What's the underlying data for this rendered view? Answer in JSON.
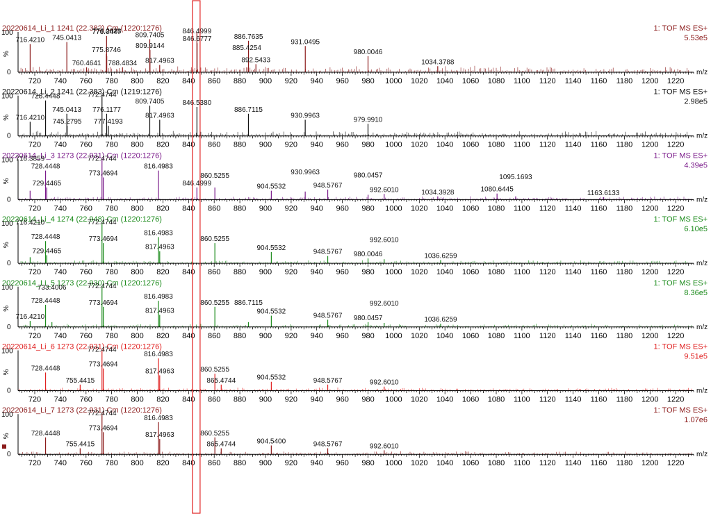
{
  "chart_data": {
    "type": "line",
    "x_axis": {
      "label": "m/z",
      "range": [
        707,
        1234
      ],
      "tick_labels": [
        "720",
        "740",
        "760",
        "780",
        "800",
        "820",
        "840",
        "860",
        "880",
        "900",
        "920",
        "940",
        "960",
        "980",
        "1000",
        "1020",
        "1040",
        "1060",
        "1080",
        "1100",
        "1120",
        "1140",
        "1160",
        "1180",
        "1200",
        "1220"
      ]
    },
    "y_axis": {
      "label": "%",
      "range": [
        0,
        100
      ],
      "tick_labels": [
        "0",
        "100"
      ]
    },
    "highlight": {
      "x_range": [
        843,
        849
      ],
      "color": "#e02020"
    },
    "series": [
      {
        "name": "20220614_Li_1 1241 (22.382) Cm (1220:1276)",
        "mode": "1: TOF MS ES+",
        "intensity": "5.53e5",
        "color": "#8b1a1a",
        "peaks": [
          {
            "mz": 716.421,
            "i": 70,
            "label": "716.4210"
          },
          {
            "mz": 745.0413,
            "i": 75,
            "label": "745.0413"
          },
          {
            "mz": 760.4641,
            "i": 12,
            "label": "760.4641"
          },
          {
            "mz": 775.8746,
            "i": 45,
            "label": "775.8746"
          },
          {
            "mz": 776.0447,
            "i": 90,
            "label": "776.0447"
          },
          {
            "mz": 776.2028,
            "i": 40,
            "label": "776.2028"
          },
          {
            "mz": 788.4834,
            "i": 12,
            "label": "788.4834"
          },
          {
            "mz": 809.7405,
            "i": 82,
            "label": "809.7405"
          },
          {
            "mz": 809.9144,
            "i": 55,
            "label": "809.9144"
          },
          {
            "mz": 817.4963,
            "i": 18,
            "label": "817.4963"
          },
          {
            "mz": 846.4999,
            "i": 100,
            "label": "846.4999"
          },
          {
            "mz": 846.6777,
            "i": 72,
            "label": "846.6777"
          },
          {
            "mz": 885.4254,
            "i": 12,
            "label": "885.4254"
          },
          {
            "mz": 886.7635,
            "i": 78,
            "label": "886.7635"
          },
          {
            "mz": 892.5433,
            "i": 20,
            "label": "892.5433"
          },
          {
            "mz": 931.0495,
            "i": 65,
            "label": "931.0495"
          },
          {
            "mz": 980.0046,
            "i": 40,
            "label": "980.0046"
          },
          {
            "mz": 1034.3788,
            "i": 15,
            "label": "1034.3788"
          }
        ]
      },
      {
        "name": "20220614_Li_2 1241 (22.383) Cm (1219:1276)",
        "mode": "1: TOF MS ES+",
        "intensity": "2.98e5",
        "color": "#111111",
        "peaks": [
          {
            "mz": 716.421,
            "i": 35,
            "label": "716.4210"
          },
          {
            "mz": 728.4448,
            "i": 88,
            "label": "728.4448"
          },
          {
            "mz": 745.0413,
            "i": 55,
            "label": "745.0413"
          },
          {
            "mz": 745.2795,
            "i": 25,
            "label": "745.2795"
          },
          {
            "mz": 772.4744,
            "i": 100,
            "label": "772.4744"
          },
          {
            "mz": 776.1177,
            "i": 55,
            "label": "776.1177"
          },
          {
            "mz": 777.4193,
            "i": 25,
            "label": "777.4193"
          },
          {
            "mz": 809.7405,
            "i": 75,
            "label": "809.7405"
          },
          {
            "mz": 817.4963,
            "i": 40,
            "label": "817.4963"
          },
          {
            "mz": 846.538,
            "i": 72,
            "label": "846.5380"
          },
          {
            "mz": 886.7115,
            "i": 55,
            "label": "886.7115"
          },
          {
            "mz": 930.9963,
            "i": 40,
            "label": "930.9963"
          },
          {
            "mz": 979.991,
            "i": 30,
            "label": "979.9910"
          }
        ]
      },
      {
        "name": "20220614_Li_3 1273 (22.931) Cm (1220:1276)",
        "mode": "1: TOF MS ES+",
        "intensity": "4.39e5",
        "color": "#7a1a8a",
        "peaks": [
          {
            "mz": 716.3859,
            "i": 22,
            "label": "716.3859"
          },
          {
            "mz": 728.4448,
            "i": 72,
            "label": "728.4448"
          },
          {
            "mz": 729.4465,
            "i": 30,
            "label": "729.4465"
          },
          {
            "mz": 772.4744,
            "i": 100,
            "label": "772.4744"
          },
          {
            "mz": 773.4694,
            "i": 55,
            "label": "773.4694"
          },
          {
            "mz": 816.4983,
            "i": 72,
            "label": "816.4983"
          },
          {
            "mz": 846.4999,
            "i": 30,
            "label": "846.4999"
          },
          {
            "mz": 860.5255,
            "i": 30,
            "label": "860.5255"
          },
          {
            "mz": 904.5532,
            "i": 22,
            "label": "904.5532"
          },
          {
            "mz": 930.9963,
            "i": 20,
            "label": "930.9963"
          },
          {
            "mz": 948.5767,
            "i": 25,
            "label": "948.5767"
          },
          {
            "mz": 980.0457,
            "i": 12,
            "label": "980.0457"
          },
          {
            "mz": 992.601,
            "i": 14,
            "label": "992.6010"
          },
          {
            "mz": 1034.3928,
            "i": 8,
            "label": "1034.3928"
          },
          {
            "mz": 1080.6445,
            "i": 15,
            "label": "1080.6445"
          },
          {
            "mz": 1095.1693,
            "i": 8,
            "label": "1095.1693"
          },
          {
            "mz": 1163.6133,
            "i": 6,
            "label": "1163.6133"
          }
        ]
      },
      {
        "name": "20220614_Li_4 1274 (22.948) Cm (1220:1276)",
        "mode": "1: TOF MS ES+",
        "intensity": "6.10e5",
        "color": "#1a8a1a",
        "peaks": [
          {
            "mz": 716.421,
            "i": 15,
            "label": "716.4210"
          },
          {
            "mz": 728.4448,
            "i": 55,
            "label": "728.4448"
          },
          {
            "mz": 729.4465,
            "i": 20,
            "label": "729.4465"
          },
          {
            "mz": 772.4744,
            "i": 100,
            "label": "772.4744"
          },
          {
            "mz": 773.4694,
            "i": 50,
            "label": "773.4694"
          },
          {
            "mz": 816.4983,
            "i": 65,
            "label": "816.4983"
          },
          {
            "mz": 817.4963,
            "i": 30,
            "label": "817.4963"
          },
          {
            "mz": 860.5255,
            "i": 50,
            "label": "860.5255"
          },
          {
            "mz": 904.5532,
            "i": 28,
            "label": "904.5532"
          },
          {
            "mz": 948.5767,
            "i": 18,
            "label": "948.5767"
          },
          {
            "mz": 980.0046,
            "i": 12,
            "label": "980.0046"
          },
          {
            "mz": 992.601,
            "i": 10,
            "label": "992.6010"
          },
          {
            "mz": 1036.6259,
            "i": 8,
            "label": "1036.6259"
          }
        ]
      },
      {
        "name": "20220614_Li_5 1273 (22.930) Cm (1220:1276)",
        "mode": "1: TOF MS ES+",
        "intensity": "8.36e5",
        "color": "#1a8a1a",
        "peaks": [
          {
            "mz": 716.421,
            "i": 15,
            "label": "716.4210"
          },
          {
            "mz": 728.4448,
            "i": 55,
            "label": "728.4448"
          },
          {
            "mz": 733.4006,
            "i": 12,
            "label": "733.4006"
          },
          {
            "mz": 772.4744,
            "i": 100,
            "label": "772.4744"
          },
          {
            "mz": 773.4694,
            "i": 50,
            "label": "773.4694"
          },
          {
            "mz": 816.4983,
            "i": 65,
            "label": "816.4983"
          },
          {
            "mz": 817.4963,
            "i": 30,
            "label": "817.4963"
          },
          {
            "mz": 860.5255,
            "i": 50,
            "label": "860.5255"
          },
          {
            "mz": 886.7115,
            "i": 12,
            "label": "886.7115"
          },
          {
            "mz": 904.5532,
            "i": 28,
            "label": "904.5532"
          },
          {
            "mz": 948.5767,
            "i": 18,
            "label": "948.5767"
          },
          {
            "mz": 980.0457,
            "i": 12,
            "label": "980.0457"
          },
          {
            "mz": 992.601,
            "i": 10,
            "label": "992.6010"
          },
          {
            "mz": 1036.6259,
            "i": 8,
            "label": "1036.6259"
          }
        ]
      },
      {
        "name": "20220614_Li_6 1273 (22.931) Cm (1220:1276)",
        "mode": "1: TOF MS ES+",
        "intensity": "9.51e5",
        "color": "#e02020",
        "peaks": [
          {
            "mz": 728.4448,
            "i": 45,
            "label": "728.4448"
          },
          {
            "mz": 755.4415,
            "i": 15,
            "label": "755.4415"
          },
          {
            "mz": 772.4744,
            "i": 100,
            "label": "772.4744"
          },
          {
            "mz": 773.4694,
            "i": 55,
            "label": "773.4694"
          },
          {
            "mz": 816.4983,
            "i": 80,
            "label": "816.4983"
          },
          {
            "mz": 817.4963,
            "i": 38,
            "label": "817.4963"
          },
          {
            "mz": 860.5255,
            "i": 42,
            "label": "860.5255"
          },
          {
            "mz": 865.4744,
            "i": 15,
            "label": "865.4744"
          },
          {
            "mz": 904.5532,
            "i": 22,
            "label": "904.5532"
          },
          {
            "mz": 948.5767,
            "i": 15,
            "label": "948.5767"
          },
          {
            "mz": 992.601,
            "i": 10,
            "label": "992.6010"
          }
        ]
      },
      {
        "name": "20220614_Li_7 1273 (22.931) Cm (1220:1276)",
        "mode": "1: TOF MS ES+",
        "intensity": "1.07e6",
        "color": "#8b1a1a",
        "peaks": [
          {
            "mz": 728.4448,
            "i": 42,
            "label": "728.4448"
          },
          {
            "mz": 755.4415,
            "i": 15,
            "label": "755.4415"
          },
          {
            "mz": 772.4744,
            "i": 100,
            "label": "772.4744"
          },
          {
            "mz": 773.4694,
            "i": 55,
            "label": "773.4694"
          },
          {
            "mz": 816.4983,
            "i": 80,
            "label": "816.4983"
          },
          {
            "mz": 817.4963,
            "i": 38,
            "label": "817.4963"
          },
          {
            "mz": 860.5255,
            "i": 42,
            "label": "860.5255"
          },
          {
            "mz": 865.4744,
            "i": 15,
            "label": "865.4744"
          },
          {
            "mz": 904.54,
            "i": 22,
            "label": "904.5400"
          },
          {
            "mz": 948.5767,
            "i": 15,
            "label": "948.5767"
          },
          {
            "mz": 992.601,
            "i": 10,
            "label": "992.6010"
          }
        ]
      }
    ]
  }
}
